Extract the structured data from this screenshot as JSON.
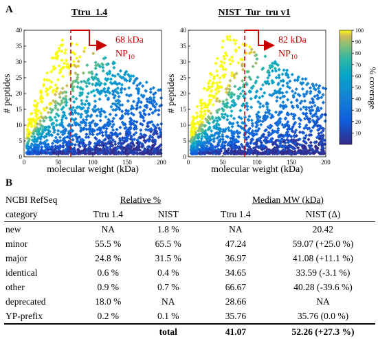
{
  "panel_a_letter": "A",
  "panel_b_letter": "B",
  "colorbar": {
    "label": "% coverage",
    "ticks": [
      "100",
      "90",
      "80",
      "70",
      "60",
      "50",
      "40",
      "30",
      "20",
      "10"
    ]
  },
  "plots": [
    {
      "title": "Ttru_1.4",
      "annotation_kda": "68 kDa",
      "annotation_np": "NP",
      "annotation_np_sub": "10"
    },
    {
      "title": "NIST_Tur_tru v1",
      "annotation_kda": "82 kDa",
      "annotation_np": "NP",
      "annotation_np_sub": "10"
    }
  ],
  "chart_data": [
    {
      "type": "scatter",
      "title": "Ttru_1.4",
      "xlabel": "molecular weight (kDa)",
      "ylabel": "# peptides",
      "xlim": [
        0,
        200
      ],
      "ylim": [
        0,
        40
      ],
      "xticks": [
        "0",
        "50",
        "100",
        "150",
        "200"
      ],
      "yticks": [
        "0",
        "5",
        "10",
        "15",
        "20",
        "25",
        "30",
        "35",
        "40"
      ],
      "np10_mw_kda": 68,
      "color_scale": "% coverage",
      "color_range": [
        0,
        100
      ],
      "points_summary": "dense cloud of proteins; peptide counts fall off with MW; high coverage at low MW"
    },
    {
      "type": "scatter",
      "title": "NIST_Tur_tru v1",
      "xlabel": "molecular weight (kDa)",
      "ylabel": "# peptides",
      "xlim": [
        0,
        200
      ],
      "ylim": [
        0,
        40
      ],
      "xticks": [
        "0",
        "50",
        "100",
        "150",
        "200"
      ],
      "yticks": [
        "0",
        "5",
        "10",
        "15",
        "20",
        "25",
        "30",
        "35",
        "40"
      ],
      "np10_mw_kda": 82,
      "color_scale": "% coverage",
      "color_range": [
        0,
        100
      ],
      "points_summary": "dense cloud of proteins; peptide counts fall off with MW; high coverage at low MW"
    }
  ],
  "table": {
    "header1": {
      "col0": "NCBI RefSeq",
      "relative": "Relative %",
      "median": "Median MW (kDa)"
    },
    "header2": {
      "col0": "category",
      "a": "Ttru 1.4",
      "b": "NIST",
      "c": "Ttru 1.4",
      "d": "NIST (Δ)"
    },
    "rows": [
      [
        "new",
        "NA",
        "1.8 %",
        "NA",
        "20.42"
      ],
      [
        "minor",
        "55.5 %",
        "65.5 %",
        "47.24",
        "59.07 (+25.0 %)"
      ],
      [
        "major",
        "24.8 %",
        "31.5 %",
        "36.97",
        "41.08 (+11.1 %)"
      ],
      [
        "identical",
        "0.6 %",
        "0.4 %",
        "34.65",
        "33.59 (-3.1 %)"
      ],
      [
        "other",
        "0.9 %",
        "0.7 %",
        "66.67",
        "40.28 (-39.6 %)"
      ],
      [
        "deprecated",
        "18.0 %",
        "NA",
        "28.66",
        "NA"
      ],
      [
        "YP-prefix",
        "0.2 %",
        "0.1 %",
        "35.76",
        "35.76 (0.0 %)"
      ]
    ],
    "total": {
      "label": "total",
      "c": "41.07",
      "d": "52.26 (+27.3 %)"
    }
  }
}
